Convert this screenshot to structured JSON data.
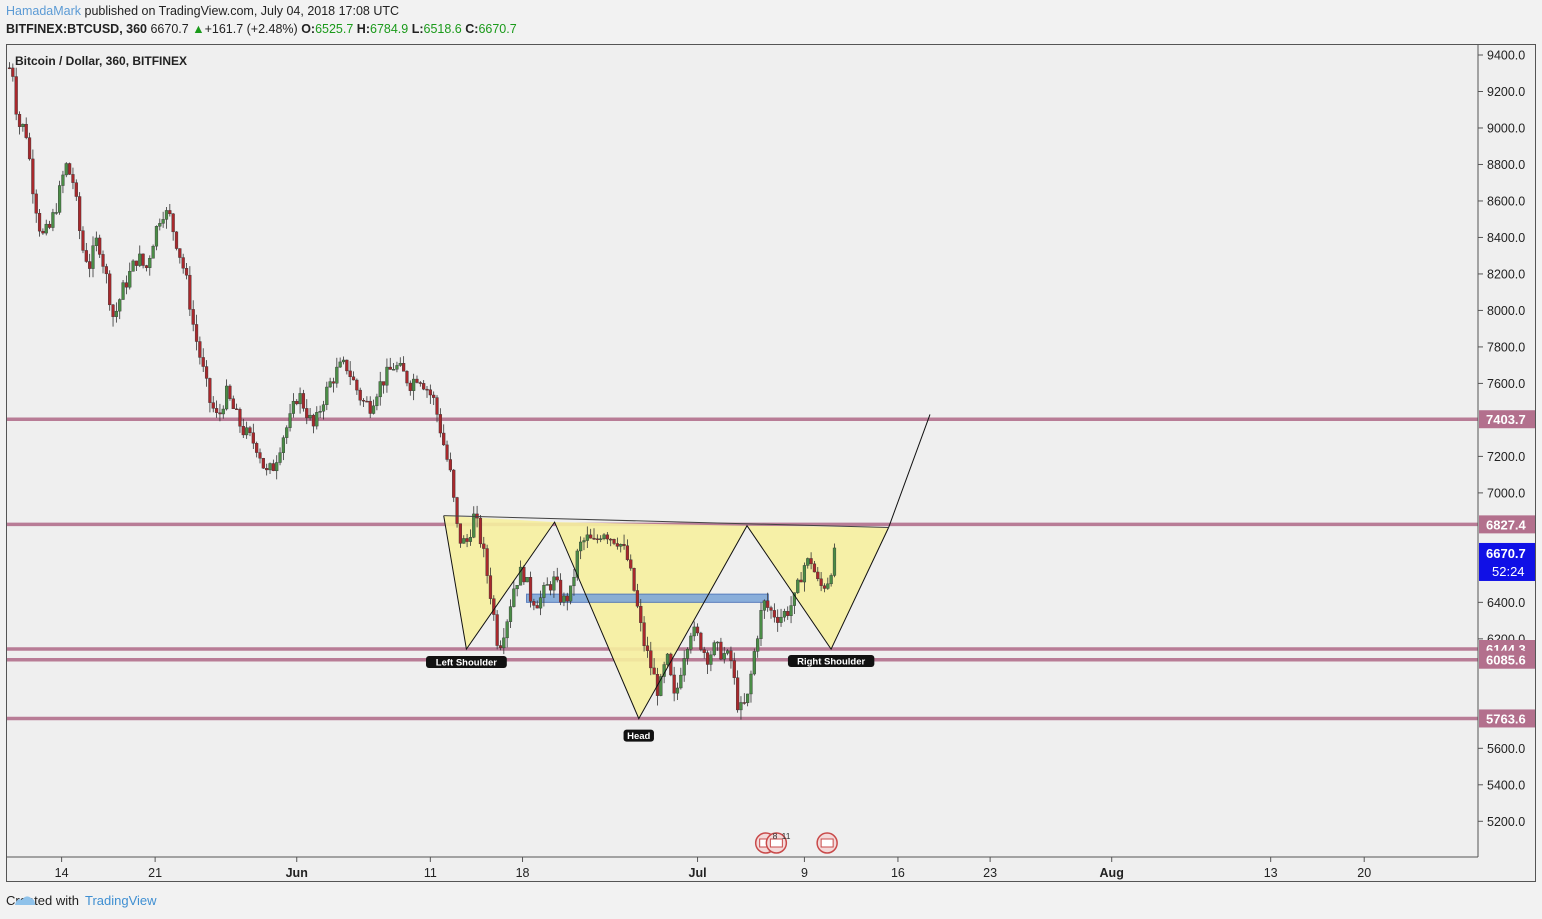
{
  "header": {
    "author": "HamadaMark",
    "published_text": " published on TradingView.com, July 04, 2018 17:08 UTC",
    "symbol": "BITFINEX:BTCUSD, 360",
    "last": "6670.7",
    "arrow": "▲",
    "change": "+161.7 (+2.48%)",
    "open_label": "O:",
    "open": "6525.7",
    "high_label": "H:",
    "high": "6784.9",
    "low_label": "L:",
    "low": "6518.6",
    "close_label": "C:",
    "close": "6670.7"
  },
  "footer": {
    "created_with": "Created with",
    "brand": "TradingView"
  },
  "colors": {
    "bull": "#4a8c46",
    "bear": "#a8282c",
    "level_line": "#b3708d",
    "pattern_fill": "#f6f09e",
    "zone_fill": "#7fa7d8",
    "last_price_bg": "#1010e6"
  },
  "chart_data": {
    "type": "candlestick",
    "title": "Bitcoin / Dollar, 360, BITFINEX",
    "timeframe": "360",
    "x_tick_labels": [
      "14",
      "21",
      "Jun",
      "11",
      "18",
      "Jul",
      "9",
      "16",
      "23",
      "Aug",
      "13",
      "20"
    ],
    "y_tick_labels": [
      "9400.0",
      "9200.0",
      "9000.0",
      "8800.0",
      "8600.0",
      "8400.0",
      "8200.0",
      "8000.0",
      "7800.0",
      "7600.0",
      "7200.0",
      "7000.0",
      "6400.0",
      "6200.0",
      "5600.0",
      "5400.0",
      "5200.0"
    ],
    "ylim": [
      5050,
      9480
    ],
    "price_path": [
      [
        0,
        9330
      ],
      [
        0.3,
        9300
      ],
      [
        0.6,
        9020
      ],
      [
        1.2,
        9000
      ],
      [
        1.8,
        8650
      ],
      [
        2.4,
        8400
      ],
      [
        3,
        8450
      ],
      [
        3.6,
        8600
      ],
      [
        4.2,
        8800
      ],
      [
        4.8,
        8700
      ],
      [
        5.4,
        8350
      ],
      [
        6,
        8250
      ],
      [
        6.6,
        8400
      ],
      [
        7.2,
        8200
      ],
      [
        7.8,
        7950
      ],
      [
        8.4,
        8100
      ],
      [
        9,
        8200
      ],
      [
        9.6,
        8300
      ],
      [
        10.2,
        8220
      ],
      [
        10.8,
        8400
      ],
      [
        11.4,
        8550
      ],
      [
        12,
        8510
      ],
      [
        12.6,
        8350
      ],
      [
        13.2,
        8180
      ],
      [
        13.8,
        7900
      ],
      [
        14.4,
        7700
      ],
      [
        15,
        7500
      ],
      [
        15.6,
        7400
      ],
      [
        16.2,
        7550
      ],
      [
        16.8,
        7450
      ],
      [
        17.4,
        7350
      ],
      [
        18,
        7300
      ],
      [
        18.6,
        7250
      ],
      [
        19.2,
        7100
      ],
      [
        19.8,
        7150
      ],
      [
        20.4,
        7300
      ],
      [
        21,
        7400
      ],
      [
        21.6,
        7550
      ],
      [
        22.2,
        7450
      ],
      [
        22.8,
        7350
      ],
      [
        23.4,
        7500
      ],
      [
        24,
        7600
      ],
      [
        24.6,
        7680
      ],
      [
        25.2,
        7700
      ],
      [
        25.8,
        7600
      ],
      [
        26.4,
        7500
      ],
      [
        27,
        7480
      ],
      [
        27.6,
        7580
      ],
      [
        28.2,
        7640
      ],
      [
        28.8,
        7700
      ],
      [
        29.4,
        7660
      ],
      [
        30,
        7600
      ],
      [
        30.6,
        7650
      ],
      [
        31.2,
        7580
      ],
      [
        31.8,
        7500
      ],
      [
        32.4,
        7300
      ],
      [
        33,
        7100
      ],
      [
        33.6,
        6750
      ],
      [
        34.2,
        6720
      ],
      [
        34.8,
        6880
      ],
      [
        35.4,
        6700
      ],
      [
        36,
        6450
      ],
      [
        36.6,
        6150
      ],
      [
        37.2,
        6300
      ],
      [
        37.8,
        6500
      ],
      [
        38.4,
        6580
      ],
      [
        39,
        6430
      ],
      [
        39.6,
        6400
      ],
      [
        40.2,
        6480
      ],
      [
        40.8,
        6520
      ],
      [
        41.4,
        6400
      ],
      [
        42,
        6450
      ],
      [
        42.6,
        6700
      ],
      [
        43.2,
        6750
      ],
      [
        43.8,
        6720
      ],
      [
        44.4,
        6800
      ],
      [
        45,
        6760
      ],
      [
        45.6,
        6740
      ],
      [
        46.2,
        6650
      ],
      [
        46.8,
        6450
      ],
      [
        47.4,
        6200
      ],
      [
        48,
        6050
      ],
      [
        48.6,
        5900
      ],
      [
        49.2,
        6100
      ],
      [
        49.8,
        5850
      ],
      [
        50.4,
        6100
      ],
      [
        51,
        6250
      ],
      [
        51.6,
        6200
      ],
      [
        52.2,
        6100
      ],
      [
        52.8,
        6150
      ],
      [
        53.4,
        6120
      ],
      [
        54,
        6080
      ],
      [
        54.6,
        5800
      ],
      [
        55.2,
        5850
      ],
      [
        55.8,
        6150
      ],
      [
        56.4,
        6400
      ],
      [
        57,
        6350
      ],
      [
        57.6,
        6320
      ],
      [
        58.2,
        6350
      ],
      [
        58.8,
        6420
      ],
      [
        59.4,
        6600
      ],
      [
        60,
        6630
      ],
      [
        60.6,
        6480
      ],
      [
        61.2,
        6510
      ],
      [
        61.8,
        6670
      ]
    ],
    "horizontal_levels": [
      {
        "price": 7403.7,
        "label": "7403.7"
      },
      {
        "price": 6827.4,
        "label": "6827.4"
      },
      {
        "price": 6144.3,
        "label": "6144.3"
      },
      {
        "price": 6085.6,
        "label": "6085.6"
      },
      {
        "price": 5763.6,
        "label": "5763.6"
      }
    ],
    "last_price": {
      "price": 6670.7,
      "label": "6670.7",
      "countdown": "52:24"
    },
    "annotations": [
      {
        "text": "Left Shoulder"
      },
      {
        "text": "Head"
      },
      {
        "text": "Right Shoulder"
      }
    ],
    "event_markers": [
      "8",
      "11"
    ]
  }
}
